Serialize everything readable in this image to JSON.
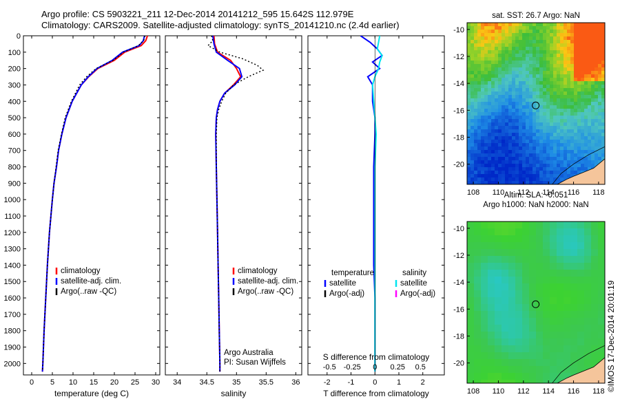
{
  "titles": {
    "line1": "Argo profile: CS 5903221_211 12-Dec-2014 20141212_595 15.642S 112.979E",
    "line2": "Climatology: CARS2009. Satellite-adjusted climatology: synTS_20141210.nc (2.4d earlier)"
  },
  "colors": {
    "climatology": "#ff0000",
    "satellite": "#0000ff",
    "argo": "#000000",
    "sal_satellite": "#00e5ee",
    "sal_argo": "#ff00ff"
  },
  "chart_data": [
    {
      "type": "line",
      "xlabel": "temperature (deg C)",
      "xticks": [
        0,
        5,
        10,
        15,
        20,
        25,
        30
      ],
      "xlim": [
        -2,
        31
      ],
      "ylim": [
        2070,
        0
      ],
      "yticks": [
        0,
        100,
        200,
        300,
        400,
        500,
        600,
        700,
        800,
        900,
        1000,
        1100,
        1200,
        1300,
        1400,
        1500,
        1600,
        1700,
        1800,
        1900,
        2000
      ],
      "legend": [
        "climatology",
        "satellite-adj. clim.",
        "Argo(..raw -QC)"
      ],
      "series": [
        {
          "name": "climatology",
          "depth": [
            0,
            30,
            60,
            100,
            150,
            200,
            250,
            300,
            400,
            500,
            600,
            700,
            800,
            900,
            1000,
            1200,
            1400,
            1600,
            1800,
            2000,
            2050
          ],
          "values": [
            28.0,
            27.6,
            26.5,
            22.5,
            20.0,
            16.0,
            13.8,
            12.0,
            9.8,
            8.3,
            7.3,
            6.5,
            6.0,
            5.4,
            5.0,
            4.3,
            3.8,
            3.4,
            3.0,
            2.7,
            2.6
          ]
        },
        {
          "name": "satellite-adj. clim.",
          "depth": [
            0,
            30,
            60,
            100,
            150,
            200,
            250,
            300,
            400,
            500,
            600,
            700,
            800,
            900,
            1000,
            1200,
            1400,
            1600,
            1800,
            2000,
            2050
          ],
          "values": [
            27.3,
            27.0,
            26.0,
            22.0,
            19.5,
            15.8,
            13.7,
            12.0,
            9.8,
            8.3,
            7.3,
            6.5,
            6.0,
            5.4,
            5.0,
            4.3,
            3.8,
            3.4,
            3.0,
            2.7,
            2.6
          ]
        },
        {
          "name": "Argo(..raw -QC)",
          "depth": [
            0,
            30,
            60,
            100,
            150,
            200,
            250,
            300,
            400,
            500,
            600,
            700,
            800,
            900,
            1000,
            1200,
            1400,
            1600,
            1800,
            2000,
            2050
          ],
          "values": [
            27.4,
            27.1,
            25.8,
            22.2,
            19.7,
            15.6,
            13.3,
            11.6,
            9.6,
            8.1,
            7.2,
            6.4,
            5.9,
            5.4,
            5.0,
            4.3,
            3.8,
            3.4,
            3.0,
            2.7,
            2.6
          ]
        }
      ]
    },
    {
      "type": "line",
      "xlabel": "salinity",
      "xticks": [
        34,
        34.5,
        35,
        35.5,
        36
      ],
      "xlim": [
        33.8,
        36.1
      ],
      "ylim": [
        2070,
        0
      ],
      "legend": [
        "climatology",
        "satellite-adj. clim.",
        "Argo(..raw -QC)"
      ],
      "annotation": [
        "Argo Australia",
        "PI: Susan Wijffels"
      ],
      "series": [
        {
          "name": "climatology",
          "depth": [
            0,
            50,
            100,
            150,
            200,
            250,
            300,
            350,
            400,
            450,
            500,
            600,
            800,
            1000,
            1200,
            1400,
            1600,
            1800,
            2000,
            2050
          ],
          "values": [
            34.62,
            34.63,
            34.68,
            34.9,
            35.0,
            35.07,
            34.95,
            34.8,
            34.72,
            34.68,
            34.66,
            34.65,
            34.66,
            34.67,
            34.68,
            34.69,
            34.7,
            34.71,
            34.72,
            34.72
          ]
        },
        {
          "name": "satellite-adj. clim.",
          "depth": [
            0,
            50,
            100,
            150,
            200,
            250,
            300,
            350,
            400,
            450,
            500,
            600,
            800,
            1000,
            1200,
            1400,
            1600,
            1800,
            2000,
            2050
          ],
          "values": [
            34.6,
            34.62,
            34.66,
            34.85,
            35.05,
            35.09,
            34.97,
            34.8,
            34.72,
            34.68,
            34.66,
            34.65,
            34.66,
            34.67,
            34.68,
            34.69,
            34.7,
            34.71,
            34.72,
            34.72
          ]
        },
        {
          "name": "Argo(..raw -QC)",
          "depth": [
            0,
            30,
            60,
            100,
            140,
            180,
            210,
            250,
            300,
            350,
            400,
            450,
            500,
            600,
            800,
            1000,
            1200,
            1400,
            1600,
            1800,
            2000,
            2050
          ],
          "values": [
            34.58,
            34.6,
            34.52,
            34.72,
            35.1,
            35.35,
            35.45,
            35.2,
            34.95,
            34.82,
            34.75,
            34.7,
            34.67,
            34.66,
            34.66,
            34.67,
            34.68,
            34.69,
            34.7,
            34.71,
            34.72,
            34.72
          ]
        }
      ]
    },
    {
      "type": "line",
      "xlabel": "T difference from climatology",
      "x2label": "S difference from climatology",
      "xticks": [
        -2,
        -1,
        0,
        1,
        2
      ],
      "xlim": [
        -2.8,
        2.9
      ],
      "x2ticks": [
        "-0.5",
        "-0.25",
        "0",
        "0.25",
        "0.5"
      ],
      "ylim": [
        2070,
        0
      ],
      "legend_header": [
        "temperature",
        "salinity"
      ],
      "legend": [
        "satellite",
        "Argo(-adj)",
        "satellite",
        "Argo(-adj)"
      ],
      "series": [
        {
          "name": "temperature satellite",
          "depth": [
            0,
            40,
            80,
            120,
            160,
            200,
            250,
            300,
            400,
            500,
            600,
            800,
            1000,
            1200,
            1400,
            1600,
            1800,
            2000,
            2050
          ],
          "values": [
            -0.6,
            -0.2,
            0.1,
            0.3,
            -0.1,
            0.2,
            -0.3,
            -0.1,
            -0.1,
            0.0,
            0.0,
            -0.05,
            -0.05,
            -0.05,
            -0.05,
            0.0,
            0.0,
            0.0,
            0.0
          ]
        },
        {
          "name": "salinity satellite",
          "depth": [
            0,
            40,
            80,
            120,
            160,
            200,
            250,
            300,
            400,
            500,
            600,
            800,
            1000,
            1200,
            1400,
            1600,
            1800,
            2000,
            2050
          ],
          "values": [
            0.2,
            0.15,
            0.1,
            0.3,
            0.2,
            0.15,
            0.0,
            -0.1,
            -0.05,
            0.0,
            0.05,
            0.0,
            0.0,
            0.0,
            0.0,
            0.0,
            0.0,
            0.0,
            0.0
          ]
        }
      ]
    },
    {
      "type": "heatmap",
      "title": "sat. SST: 26.7  Argo: NaN",
      "xticks": [
        108,
        110,
        112,
        114,
        116,
        118
      ],
      "xlim": [
        107.5,
        118.5
      ],
      "yticks": [
        -10,
        -12,
        -14,
        -16,
        -18,
        -20
      ],
      "ylim": [
        -21.5,
        -9.5
      ],
      "marker": {
        "lon": 112.979,
        "lat": -15.642
      }
    },
    {
      "type": "heatmap",
      "title": "Altim. SLA: -0.051",
      "subtitle": "Argo h1000: NaN h2000: NaN",
      "xticks": [
        108,
        110,
        112,
        114,
        116,
        118
      ],
      "xlim": [
        107.5,
        118.5
      ],
      "yticks": [
        -10,
        -12,
        -14,
        -16,
        -18,
        -20
      ],
      "ylim": [
        -21.5,
        -9.5
      ],
      "marker": {
        "lon": 112.979,
        "lat": -15.642
      }
    }
  ],
  "stamp": "©IMOS 17-Dec-2014 20:01:19"
}
